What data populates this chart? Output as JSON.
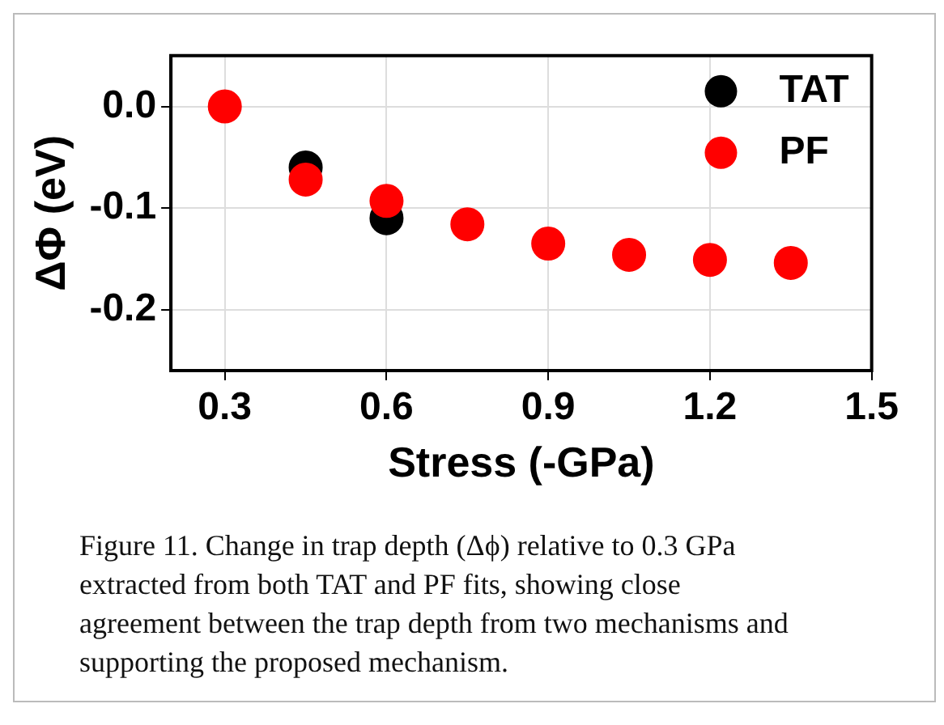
{
  "chart_data": {
    "type": "scatter",
    "xlabel": "Stress (-GPa)",
    "ylabel": "ΔΦ (eV)",
    "xlim": [
      0.2,
      1.5
    ],
    "xticks": [
      0.3,
      0.6,
      0.9,
      1.2,
      1.5
    ],
    "ylim": [
      -0.26,
      0.05
    ],
    "yticks": [
      {
        "value": 0,
        "label": "0.0"
      },
      {
        "value": -0.1,
        "label": "-0.1"
      },
      {
        "value": -0.2,
        "label": "-0.2"
      }
    ],
    "grid": true,
    "legend": "top right",
    "marker": "circle",
    "series": [
      {
        "name": "TAT",
        "color": "#000000",
        "x": [
          0.45,
          0.6
        ],
        "values": [
          -0.06,
          -0.11
        ]
      },
      {
        "name": "PF",
        "color": "#ff0000",
        "x": [
          0.3,
          0.45,
          0.6,
          0.75,
          0.9,
          1.05,
          1.2,
          1.35
        ],
        "values": [
          0,
          -0.072,
          -0.093,
          -0.116,
          -0.135,
          -0.146,
          -0.151,
          -0.154
        ]
      }
    ],
    "annotations": [
      "Figure 11. Change in trap depth (Δϕ) relative to 0.3 GPa extracted from both TAT and PF fits, showing close agreement between the trap depth from two mechanisms and supporting the proposed mechanism."
    ]
  }
}
